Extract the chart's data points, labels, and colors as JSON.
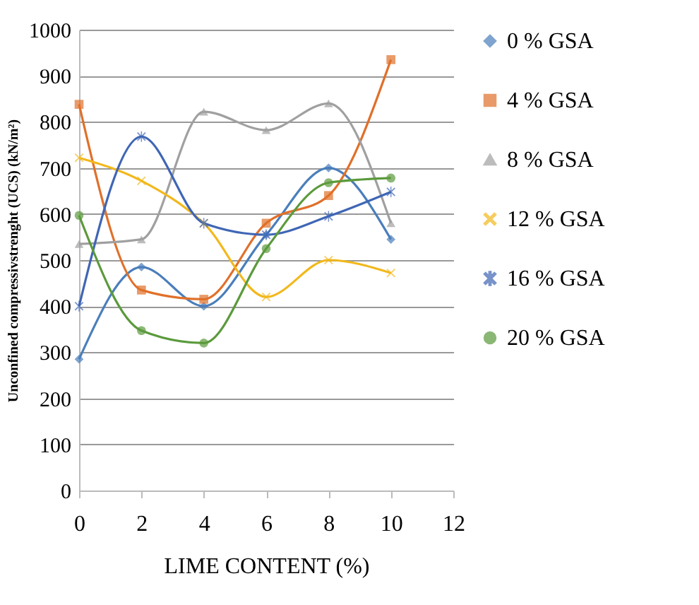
{
  "chart_data": {
    "type": "line",
    "xlabel": "LIME CONTENT (%)",
    "ylabel": "Unconfined compressivstrenght (UCS) (kN/m²)",
    "x": [
      0,
      2,
      4,
      6,
      8,
      10
    ],
    "xlim": [
      0,
      12
    ],
    "xticks": [
      0,
      2,
      4,
      6,
      8,
      10,
      12
    ],
    "ylim": [
      0,
      1000
    ],
    "yticks": [
      0,
      100,
      200,
      300,
      400,
      500,
      600,
      700,
      800,
      900,
      1000
    ],
    "grid": "y",
    "legend": "right",
    "series": [
      {
        "name": "0 % GSA",
        "color": "#4a7ebb",
        "marker": "diamond",
        "values": [
          285,
          485,
          400,
          555,
          700,
          545
        ]
      },
      {
        "name": "4 % GSA",
        "color": "#e0702a",
        "marker": "square",
        "values": [
          838,
          435,
          415,
          580,
          640,
          935
        ]
      },
      {
        "name": "8 % GSA",
        "color": "#a0a0a0",
        "marker": "triangle",
        "values": [
          535,
          545,
          822,
          782,
          840,
          580
        ]
      },
      {
        "name": "12 % GSA",
        "color": "#f2b81c",
        "marker": "cross",
        "values": [
          722,
          672,
          580,
          420,
          500,
          472
        ]
      },
      {
        "name": "16 % GSA",
        "color": "#3f66b5",
        "marker": "star",
        "values": [
          400,
          768,
          580,
          555,
          595,
          648
        ]
      },
      {
        "name": "20 % GSA",
        "color": "#5b9a3c",
        "marker": "circle",
        "values": [
          597,
          347,
          320,
          525,
          668,
          678
        ]
      }
    ]
  }
}
